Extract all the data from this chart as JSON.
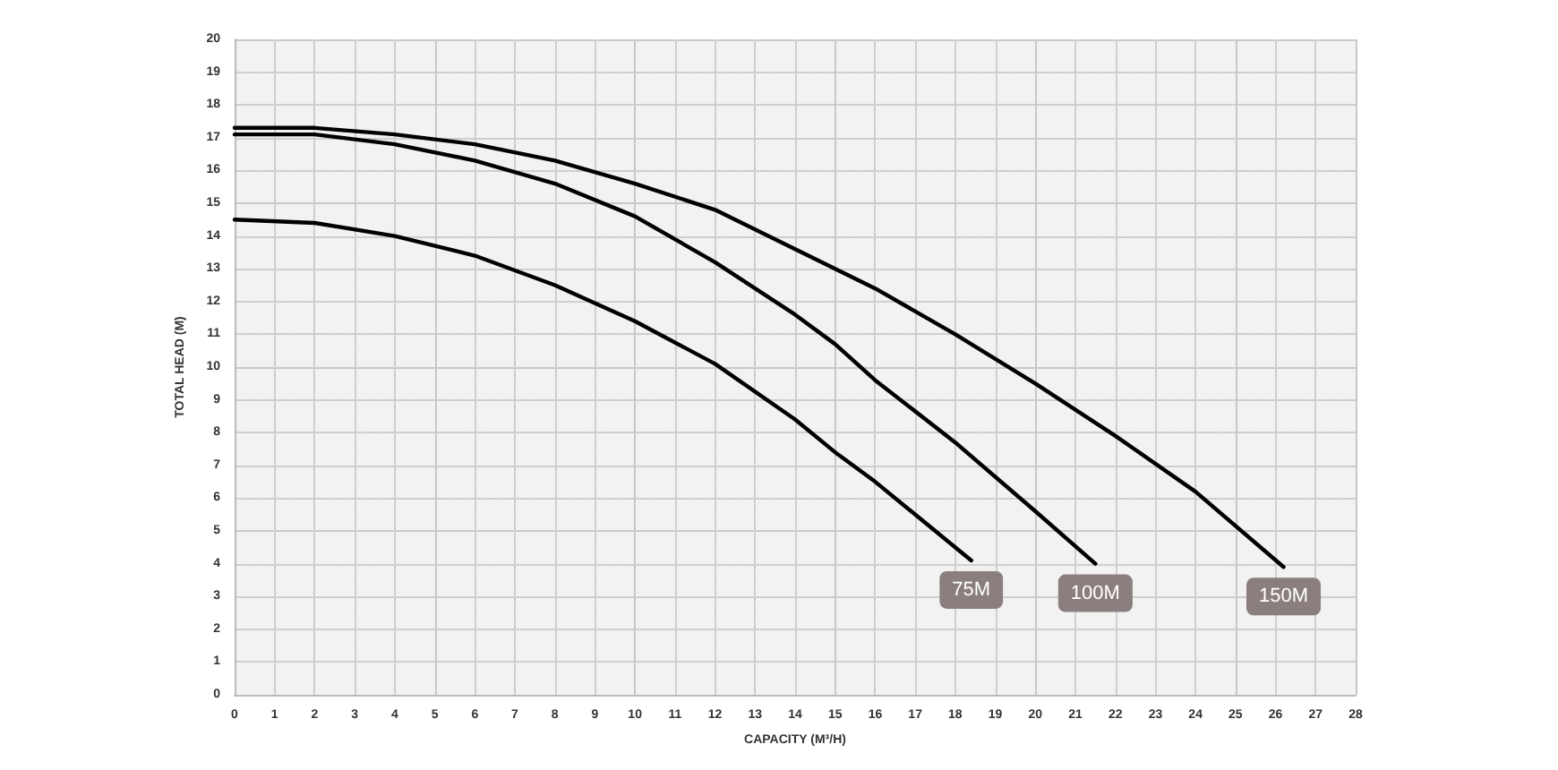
{
  "chart_data": {
    "type": "line",
    "xlabel": "CAPACITY (M³/H)",
    "ylabel": "TOTAL HEAD (M)",
    "xlim": [
      0,
      28
    ],
    "ylim": [
      0,
      20
    ],
    "xticks": [
      0,
      1,
      2,
      3,
      4,
      5,
      6,
      7,
      8,
      9,
      10,
      11,
      12,
      13,
      14,
      15,
      16,
      17,
      18,
      19,
      20,
      21,
      22,
      23,
      24,
      25,
      26,
      27,
      28
    ],
    "yticks": [
      0,
      1,
      2,
      3,
      4,
      5,
      6,
      7,
      8,
      9,
      10,
      11,
      12,
      13,
      14,
      15,
      16,
      17,
      18,
      19,
      20
    ],
    "grid": true,
    "legend": false,
    "marker": "none",
    "line_style": "solid",
    "series": [
      {
        "name": "75M",
        "color": "#000000",
        "x": [
          0,
          2,
          4,
          6,
          8,
          10,
          12,
          14,
          15,
          16,
          18.4
        ],
        "values": [
          14.5,
          14.4,
          14.0,
          13.4,
          12.5,
          11.4,
          10.1,
          8.4,
          7.4,
          6.5,
          4.1
        ]
      },
      {
        "name": "100M",
        "color": "#000000",
        "x": [
          0,
          2,
          4,
          6,
          8,
          10,
          12,
          14,
          15,
          16,
          18,
          20,
          21.5
        ],
        "values": [
          17.1,
          17.1,
          16.8,
          16.3,
          15.6,
          14.6,
          13.2,
          11.6,
          10.7,
          9.6,
          7.7,
          5.6,
          4.0
        ]
      },
      {
        "name": "150M",
        "color": "#000000",
        "x": [
          0,
          2,
          4,
          6,
          8,
          10,
          12,
          14,
          16,
          18,
          20,
          22,
          24,
          26.2
        ],
        "values": [
          17.3,
          17.3,
          17.1,
          16.8,
          16.3,
          15.6,
          14.8,
          13.6,
          12.4,
          11.0,
          9.5,
          7.9,
          6.2,
          3.9
        ]
      }
    ]
  }
}
